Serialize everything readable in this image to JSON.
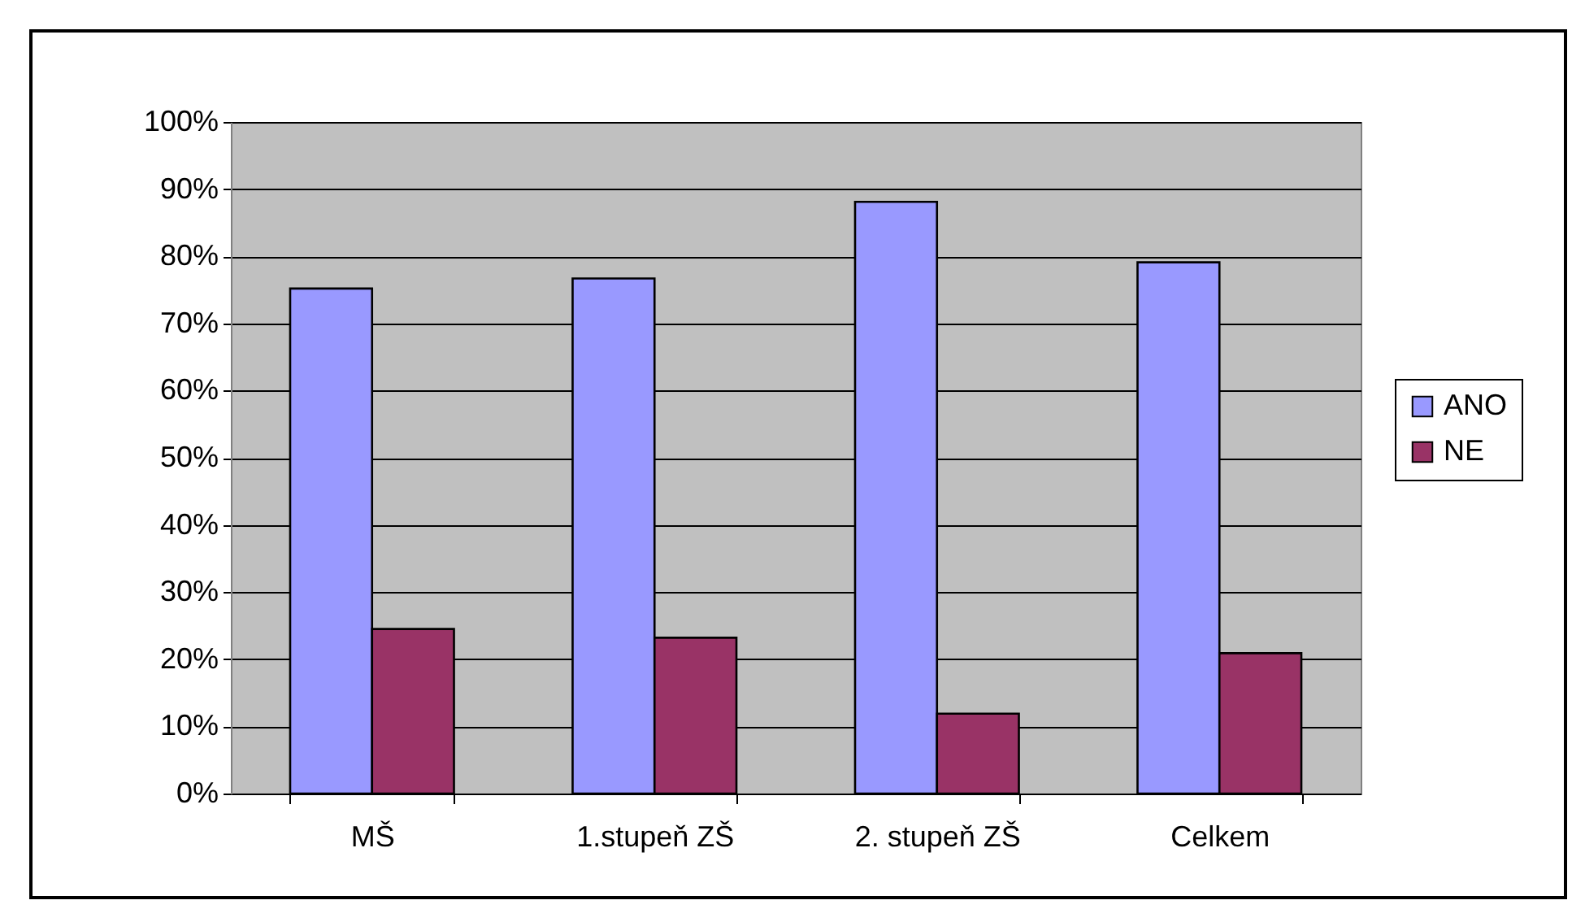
{
  "chart_data": {
    "type": "bar",
    "categories": [
      "MŠ",
      "1.stupeň ZŠ",
      "2. stupeň ZŠ",
      "Celkem"
    ],
    "series": [
      {
        "name": "ANO",
        "color": "#9999ff",
        "values": [
          75.2,
          76.7,
          88.1,
          79.1
        ]
      },
      {
        "name": "NE",
        "color": "#993366",
        "values": [
          24.5,
          23.2,
          11.9,
          20.9
        ]
      }
    ],
    "ylim": [
      0,
      100
    ],
    "yticks": [
      {
        "value": 0,
        "label": "0%"
      },
      {
        "value": 10,
        "label": "10%"
      },
      {
        "value": 20,
        "label": "20%"
      },
      {
        "value": 30,
        "label": "30%"
      },
      {
        "value": 40,
        "label": "40%"
      },
      {
        "value": 50,
        "label": "50%"
      },
      {
        "value": 60,
        "label": "60%"
      },
      {
        "value": 70,
        "label": "70%"
      },
      {
        "value": 80,
        "label": "80%"
      },
      {
        "value": 90,
        "label": "90%"
      },
      {
        "value": 100,
        "label": "100%"
      }
    ],
    "grid": "y",
    "legend": "right"
  }
}
